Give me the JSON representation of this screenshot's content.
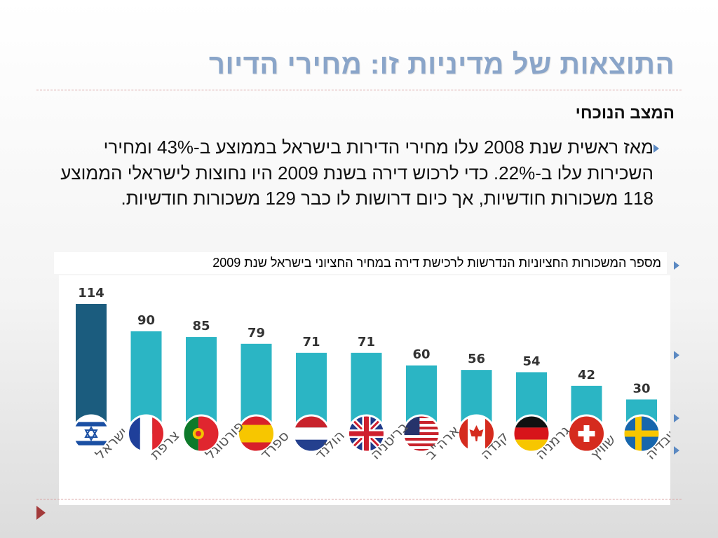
{
  "slide": {
    "title": "התוצאות של מדיניות זו: מחירי הדיור",
    "subheading": "המצב הנוכחי",
    "body": "מאז ראשית שנת 2008 עלו מחירי הדירות בישראל בממוצע ב-43% ומחירי השכירות עלו ב-22%. כדי לרכוש דירה בשנת 2009 היו נחוצות לישראלי הממוצע 118 משכורות חודשיות, אך כיום דרושות לו כבר 129 משכורות חודשיות.",
    "chart_caption": "מספר המשכורות החציוניות הנדרשות לרכישת דירה במחיר החציוני בישראל שנת 2009"
  },
  "colors": {
    "title": "#8aa5c9",
    "bar": "#2bb5c4",
    "bar_highlight": "#1b5c7e",
    "bullet": "#5b89c2",
    "nav_arrow": "#a33a3a"
  },
  "chart_data": {
    "type": "bar",
    "categories": [
      "ישראל",
      "צרפת",
      "פורטוגל",
      "ספרד",
      "הולנד",
      "בריטניה",
      "ארה\"ב",
      "קנדה",
      "גרמניה",
      "שוויץ",
      "שבדיה"
    ],
    "values": [
      114,
      90,
      85,
      79,
      71,
      71,
      60,
      56,
      54,
      42,
      30
    ],
    "flags": [
      "israel-flag-icon",
      "france-flag-icon",
      "portugal-flag-icon",
      "spain-flag-icon",
      "netherlands-flag-icon",
      "uk-flag-icon",
      "usa-flag-icon",
      "canada-flag-icon",
      "germany-flag-icon",
      "switzerland-flag-icon",
      "sweden-flag-icon"
    ],
    "highlight_index": 0,
    "title": "",
    "xlabel": "",
    "ylabel": "",
    "ylim": [
      0,
      114
    ],
    "grid": false,
    "legend": "none"
  }
}
